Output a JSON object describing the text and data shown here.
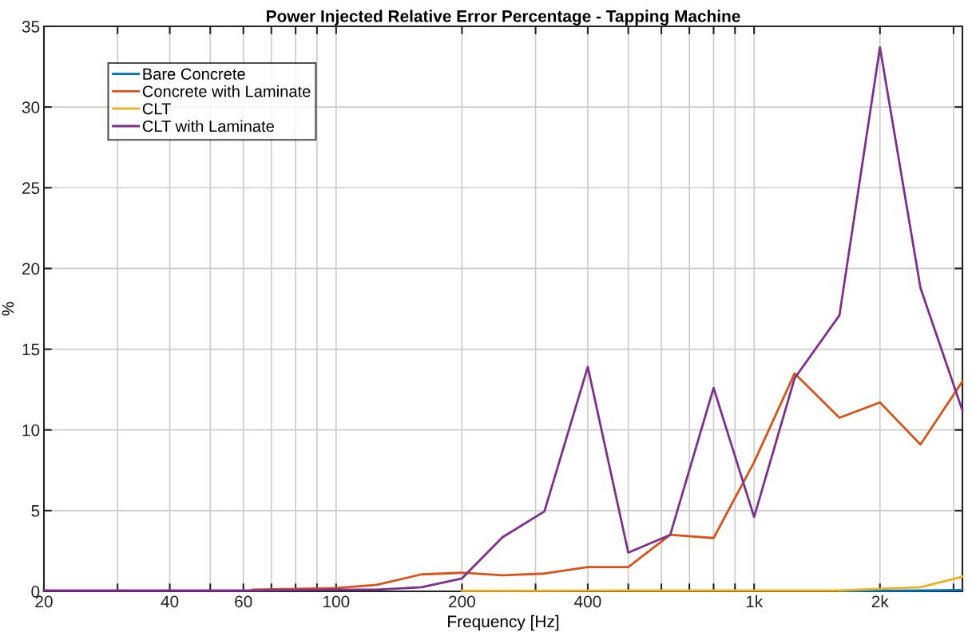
{
  "chart_data": {
    "type": "line",
    "title": "Power Injected Relative Error Percentage - Tapping Machine",
    "xlabel": "Frequency [Hz]",
    "ylabel": "%",
    "x": [
      20,
      25,
      31.5,
      40,
      50,
      63,
      80,
      100,
      125,
      160,
      200,
      250,
      315,
      400,
      500,
      630,
      800,
      1000,
      1250,
      1600,
      2000,
      2500,
      3150
    ],
    "series": [
      {
        "name": "Bare Concrete",
        "color": "#0072bd",
        "values": [
          null,
          null,
          null,
          null,
          null,
          null,
          null,
          null,
          null,
          null,
          null,
          null,
          null,
          null,
          null,
          null,
          null,
          null,
          null,
          0.02,
          0.03,
          0.05,
          0.08
        ]
      },
      {
        "name": "Concrete with Laminate",
        "color": "#d95319",
        "values": [
          null,
          null,
          null,
          null,
          null,
          0.1,
          0.15,
          0.2,
          0.4,
          1.05,
          1.15,
          1.0,
          1.1,
          1.5,
          1.5,
          3.5,
          3.3,
          8.0,
          13.5,
          10.75,
          11.7,
          9.1,
          13.0
        ]
      },
      {
        "name": "CLT",
        "color": "#edb120",
        "values": [
          null,
          null,
          null,
          null,
          null,
          null,
          null,
          null,
          null,
          null,
          0.03,
          0.03,
          0.03,
          0.04,
          0.05,
          0.05,
          0.05,
          0.05,
          0.05,
          0.05,
          0.15,
          0.25,
          0.9
        ]
      },
      {
        "name": "CLT with Laminate",
        "color": "#7e2f8e",
        "values": [
          0.05,
          0.05,
          0.05,
          0.05,
          0.05,
          0.05,
          0.08,
          0.1,
          0.1,
          0.25,
          0.8,
          3.35,
          4.95,
          13.9,
          2.4,
          3.5,
          12.6,
          4.6,
          13.2,
          17.1,
          33.7,
          18.8,
          11.2
        ]
      }
    ],
    "log": "x",
    "xlim": [
      20,
      3150
    ],
    "ylim": [
      0,
      35
    ],
    "xticks": [
      20,
      {
        "value": 30,
        "label": null
      },
      40,
      {
        "value": 50,
        "label": null
      },
      60,
      {
        "value": 70,
        "label": null
      },
      {
        "value": 80,
        "label": null
      },
      {
        "value": 90,
        "label": null
      },
      100,
      200,
      {
        "value": 300,
        "label": null
      },
      400,
      {
        "value": 500,
        "label": null
      },
      {
        "value": 600,
        "label": null
      },
      {
        "value": 700,
        "label": null
      },
      {
        "value": 800,
        "label": null
      },
      {
        "value": 900,
        "label": null
      },
      {
        "value": 1000,
        "label": "1k"
      },
      {
        "value": 2000,
        "label": "2k"
      },
      {
        "value": 3000,
        "label": null
      }
    ],
    "yticks": [
      0,
      5,
      10,
      15,
      20,
      25,
      30,
      35
    ],
    "grid": true,
    "legend": "top left",
    "line_style": "solid",
    "marker": "none"
  }
}
